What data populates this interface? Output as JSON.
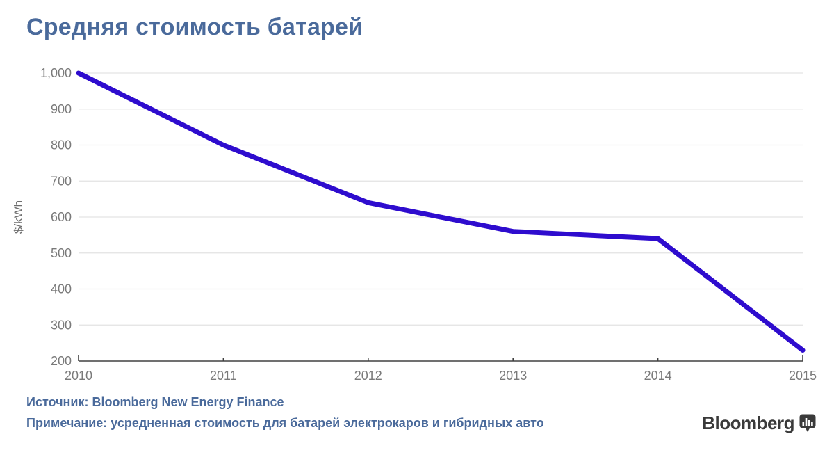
{
  "title": "Средняя стоимость батарей",
  "footer": {
    "source": "Источник: Bloomberg New Energy Finance",
    "note": "Примечание: усредненная стоимость для батарей электрокаров и гибридных авто"
  },
  "branding": {
    "logo_text": "Bloomberg",
    "logo_icon": "bar-chart-bubble-icon"
  },
  "colors": {
    "title_text": "#4a6a9b",
    "footer_text": "#4a6a9b",
    "line": "#2e0cce",
    "axis_text": "#7a7a7a",
    "axis_title_text": "#6e6e6e",
    "gridline": "#e3e3e3",
    "axis_line": "#404040",
    "logo": "#3a3a3a"
  },
  "chart_data": {
    "type": "line",
    "x": [
      2010,
      2011,
      2012,
      2013,
      2014,
      2015
    ],
    "values": [
      1000,
      800,
      640,
      560,
      540,
      230
    ],
    "series_name": "Средняя стоимость батарей",
    "title": "Средняя стоимость батарей",
    "xlabel": "",
    "ylabel": "$/kWh",
    "ylim": [
      200,
      1000
    ],
    "ytick_values": [
      1000,
      900,
      800,
      700,
      600,
      500,
      400,
      300,
      200
    ],
    "ytick_labels": [
      "1,000",
      "900",
      "800",
      "700",
      "600",
      "500",
      "400",
      "300",
      "200"
    ],
    "xtick_labels": [
      "2010",
      "2011",
      "2012",
      "2013",
      "2014",
      "2015"
    ],
    "grid": "horizontal",
    "legend": "none"
  }
}
